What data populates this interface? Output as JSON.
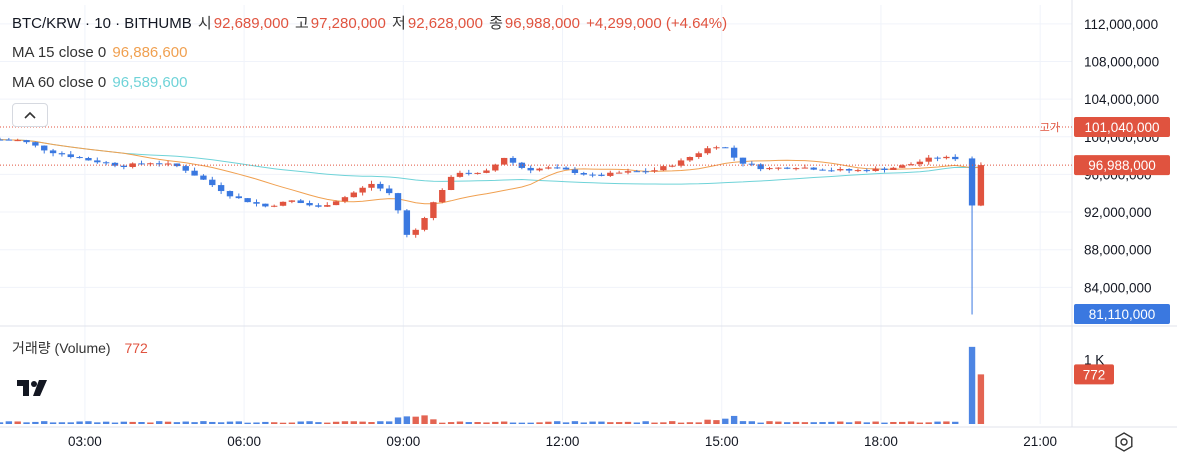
{
  "header": {
    "symbol": "BTC/KRW · 10 · BITHUMB",
    "open_label": "시",
    "open": "92,689,000",
    "high_label": "고",
    "high": "97,280,000",
    "low_label": "저",
    "low": "92,628,000",
    "close_label": "종",
    "close": "96,988,000",
    "change": "+4,299,000 (+4.64%)"
  },
  "ma15": {
    "label": "MA 15 close 0",
    "value": "96,886,600"
  },
  "ma60": {
    "label": "MA 60 close 0",
    "value": "96,589,600"
  },
  "volume_legend": {
    "label": "거래량 (Volume)",
    "value": "772"
  },
  "colors": {
    "up": "#e0533f",
    "down": "#3a78e0",
    "ma15": "#f0a050",
    "ma60": "#6fd3d8",
    "grid": "#f0f3fa"
  },
  "icons": {
    "collapse": "chevron-up-icon",
    "logo": "tradingview-logo-icon",
    "settings": "settings-hex-icon"
  },
  "chart_data": {
    "type": "candlestick",
    "price_axis": {
      "min": 80000000,
      "max": 114000000,
      "ticks": [
        112000000,
        108000000,
        104000000,
        100000000,
        96000000,
        92000000,
        88000000,
        84000000
      ],
      "tick_labels": [
        "112,000,000",
        "108,000,000",
        "104,000,000",
        "100,000,000",
        "96,000,000",
        "92,000,000",
        "88,000,000",
        "84,000,000"
      ]
    },
    "time_axis": {
      "min_hour": 1.4,
      "max_hour": 21.6,
      "ticks": [
        3,
        6,
        9,
        12,
        15,
        18,
        21
      ],
      "tick_labels": [
        "03:00",
        "06:00",
        "09:00",
        "12:00",
        "15:00",
        "18:00",
        "21:00"
      ]
    },
    "markers": {
      "high_line": {
        "label": "고가",
        "value": 101040000,
        "value_label": "101,040,000"
      },
      "last_price": {
        "value": 96988000,
        "value_label": "96,988,000"
      },
      "low_price": {
        "value": 81110000,
        "value_label": "81,110,000"
      }
    },
    "volume_axis": {
      "max": 1400,
      "tick_value": 1000,
      "tick_label": "1 K",
      "last_label": "772"
    },
    "keypoints": [
      [
        1.4,
        99700000
      ],
      [
        1.8,
        99600000
      ],
      [
        2.3,
        98500000
      ],
      [
        3.0,
        97600000
      ],
      [
        3.7,
        96900000
      ],
      [
        4.3,
        97300000
      ],
      [
        4.8,
        96800000
      ],
      [
        5.3,
        95200000
      ],
      [
        5.8,
        93600000
      ],
      [
        6.4,
        92600000
      ],
      [
        6.9,
        93200000
      ],
      [
        7.4,
        92500000
      ],
      [
        7.9,
        93600000
      ],
      [
        8.4,
        95000000
      ],
      [
        8.8,
        93800000
      ],
      [
        9.1,
        89000000
      ],
      [
        9.4,
        91500000
      ],
      [
        9.7,
        94200000
      ],
      [
        10.0,
        96300000
      ],
      [
        10.5,
        96000000
      ],
      [
        10.9,
        97800000
      ],
      [
        11.3,
        96500000
      ],
      [
        11.8,
        96700000
      ],
      [
        12.2,
        96300000
      ],
      [
        12.6,
        95800000
      ],
      [
        13.1,
        96200000
      ],
      [
        13.7,
        96400000
      ],
      [
        14.2,
        97300000
      ],
      [
        14.7,
        98700000
      ],
      [
        15.0,
        99200000
      ],
      [
        15.3,
        97400000
      ],
      [
        15.8,
        96600000
      ],
      [
        16.4,
        96800000
      ],
      [
        17.0,
        96500000
      ],
      [
        17.5,
        96400000
      ],
      [
        18.1,
        96600000
      ],
      [
        18.5,
        97000000
      ],
      [
        19.0,
        97800000
      ],
      [
        19.5,
        97700000
      ],
      [
        19.7,
        92700000
      ],
      [
        19.85,
        96988000
      ]
    ],
    "final_candles": [
      {
        "o": 97700000,
        "h": 97900000,
        "l": 81110000,
        "c": 92700000,
        "v": 1200
      },
      {
        "o": 92689000,
        "h": 97280000,
        "l": 92628000,
        "c": 96988000,
        "v": 772
      }
    ]
  }
}
